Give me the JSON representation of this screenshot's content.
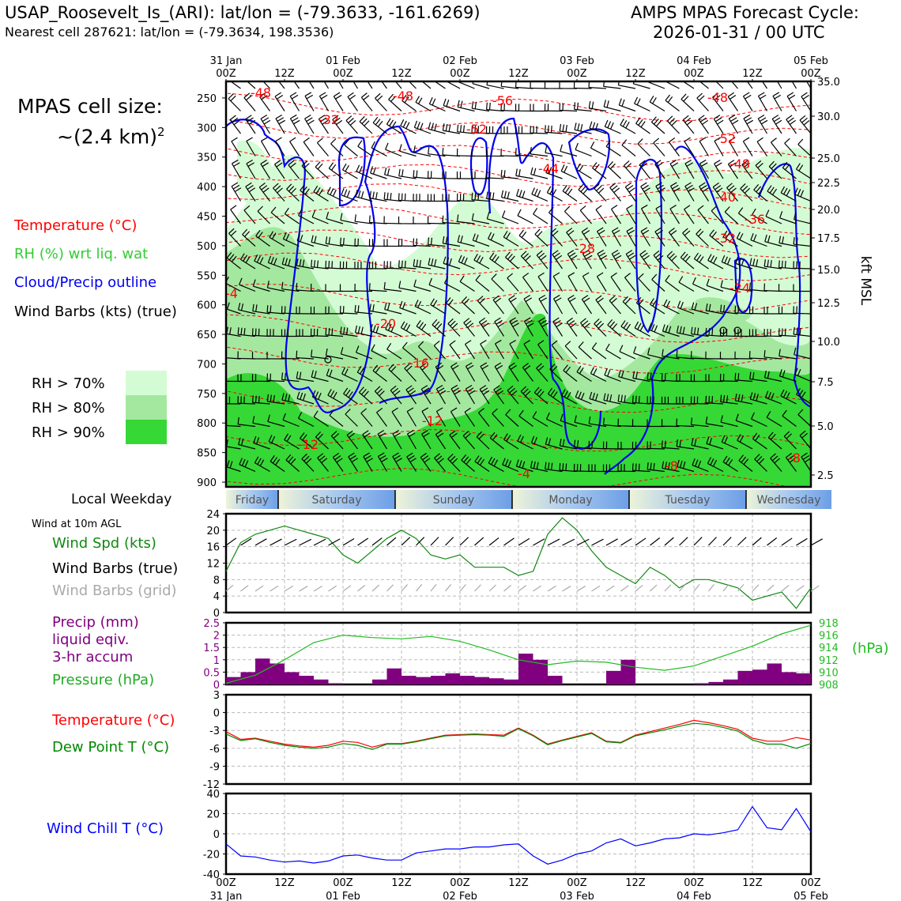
{
  "header": {
    "station": "USAP_Roosevelt_Is_(ARI): lat/lon = (-79.3633, -161.6269)",
    "nearest": "Nearest cell 287621: lat/lon = (-79.3634, 198.3536)",
    "cycle_label": "AMPS MPAS Forecast Cycle:",
    "cycle_value": "2026-01-31 / 00 UTC"
  },
  "cell_size": {
    "line1": "MPAS cell size:",
    "line2": "~(2.4 km)",
    "sup": "2"
  },
  "legend": {
    "temperature": "Temperature (°C)",
    "rh": "RH (%) wrt liq. wat",
    "cloud": "Cloud/Precip outline",
    "barbs": "Wind Barbs (kts) (true)",
    "rh70": "RH > 70%",
    "rh80": "RH > 80%",
    "rh90": "RH > 90%"
  },
  "colors": {
    "rh70": "#d4fcd4",
    "rh80": "#a4e8a0",
    "rh90": "#36d836",
    "temp": "#ff0000",
    "cloud": "#0000ee",
    "pressure": "#22bb22",
    "precip": "#800080",
    "windspd": "#118811",
    "dewpoint": "#008800",
    "windchill": "#0000ff",
    "grid_barb": "#aaaaaa"
  },
  "time_axis": {
    "top_dates": [
      "31 Jan",
      "",
      "01 Feb",
      "",
      "02 Feb",
      "",
      "03 Feb",
      "",
      "04 Feb",
      "",
      "05 Feb"
    ],
    "hours": [
      "00Z",
      "12Z",
      "00Z",
      "12Z",
      "00Z",
      "12Z",
      "00Z",
      "12Z",
      "00Z",
      "12Z",
      "00Z"
    ],
    "hour_range": [
      0,
      120
    ]
  },
  "weekday": {
    "label": "Local Weekday",
    "days": [
      "Friday",
      "Saturday",
      "Sunday",
      "Monday",
      "Tuesday",
      "Wednesday"
    ]
  },
  "wind10m": {
    "title": "Wind at 10m AGL",
    "spd_label": "Wind Spd (kts)",
    "barb_true": "Wind Barbs (true)",
    "barb_grid": "Wind Barbs (grid)"
  },
  "precip_panel": {
    "l1": "Precip (mm)",
    "l2": "liquid eqiv.",
    "l3": "3-hr accum",
    "l4": "Pressure (hPa)",
    "unit": "(hPa)"
  },
  "temp_panel": {
    "t": "Temperature (°C)",
    "td": "Dew Point T (°C)"
  },
  "chill_panel": {
    "label": "Wind Chill T (°C)"
  },
  "chart_data": [
    {
      "type": "heatmap",
      "ylabel_right": "kft MSL",
      "y_pressure_ticks": [
        250,
        300,
        350,
        400,
        450,
        500,
        550,
        600,
        650,
        700,
        750,
        800,
        850,
        900
      ],
      "y_kft_ticks": [
        "35.0",
        "30.0",
        "25.0",
        "22.5",
        "20.0",
        "17.5",
        "15.0",
        "12.5",
        "10.0",
        "7.5",
        "5.0",
        "2.5"
      ],
      "temperature_contour_labels": [
        -48,
        -32,
        -48,
        -56,
        -52,
        -44,
        -48,
        -52,
        -48,
        -40,
        -36,
        -32,
        -28,
        -24,
        -20,
        -16,
        -12,
        -12,
        -8,
        -8,
        -4,
        -4
      ]
    },
    {
      "type": "line",
      "name": "Wind Spd (kts)",
      "ylim": [
        0,
        24
      ],
      "yticks": [
        0,
        4,
        8,
        12,
        16,
        20,
        24
      ],
      "x_hours": [
        0,
        3,
        6,
        9,
        12,
        15,
        18,
        21,
        24,
        27,
        30,
        33,
        36,
        39,
        42,
        45,
        48,
        51,
        54,
        57,
        60,
        63,
        66,
        69,
        72,
        75,
        78,
        81,
        84,
        87,
        90,
        93,
        96,
        99,
        102,
        105,
        108,
        111,
        114,
        117,
        120
      ],
      "values": [
        10,
        17,
        19,
        20,
        21,
        20,
        19,
        18,
        14,
        12,
        15,
        18,
        20,
        18,
        14,
        13,
        14,
        11,
        11,
        11,
        9,
        10,
        19,
        23,
        20,
        15,
        11,
        9,
        7,
        11,
        9,
        6,
        8,
        8,
        7,
        6,
        3,
        4,
        5,
        1,
        6
      ]
    },
    {
      "type": "bar",
      "name": "Precip (mm)",
      "ylim": [
        0,
        2.5
      ],
      "yticks": [
        0,
        0.5,
        1.0,
        1.5,
        2.0,
        2.5
      ],
      "x_hours": [
        1.5,
        4.5,
        7.5,
        10.5,
        13.5,
        16.5,
        19.5,
        22.5,
        25.5,
        28.5,
        31.5,
        34.5,
        37.5,
        40.5,
        43.5,
        46.5,
        49.5,
        52.5,
        55.5,
        58.5,
        61.5,
        64.5,
        67.5,
        70.5,
        73.5,
        76.5,
        79.5,
        82.5,
        85.5,
        88.5,
        91.5,
        94.5,
        97.5,
        100.5,
        103.5,
        106.5,
        109.5,
        112.5,
        115.5,
        118.5
      ],
      "values": [
        0.3,
        0.5,
        1.05,
        0.85,
        0.5,
        0.35,
        0.2,
        0.05,
        0.0,
        0.0,
        0.2,
        0.65,
        0.35,
        0.3,
        0.35,
        0.45,
        0.35,
        0.3,
        0.25,
        0.2,
        1.25,
        1.0,
        0.35,
        0.0,
        0.0,
        0.0,
        0.55,
        1.0,
        0.0,
        0.0,
        0.0,
        0.0,
        0.05,
        0.1,
        0.2,
        0.55,
        0.6,
        0.85,
        0.5,
        0.45
      ]
    },
    {
      "type": "line",
      "name": "Pressure (hPa)",
      "ylim": [
        908,
        918
      ],
      "yticks": [
        908,
        910,
        912,
        914,
        916,
        918
      ],
      "x_hours": [
        0,
        6,
        12,
        18,
        24,
        30,
        36,
        42,
        48,
        54,
        60,
        66,
        72,
        78,
        84,
        90,
        96,
        102,
        108,
        114,
        120
      ],
      "values": [
        908.2,
        909.5,
        912,
        914.8,
        916,
        915.6,
        915.4,
        915.8,
        915,
        913.6,
        912,
        911.2,
        911.8,
        911.6,
        910.8,
        910.3,
        911,
        912.6,
        914.2,
        916.2,
        917.6
      ]
    },
    {
      "type": "line",
      "ylim": [
        -12,
        3
      ],
      "yticks": [
        -12,
        -9,
        -6,
        -3,
        0,
        3
      ],
      "x_hours": [
        0,
        3,
        6,
        9,
        12,
        15,
        18,
        21,
        24,
        27,
        30,
        33,
        36,
        39,
        42,
        45,
        48,
        51,
        54,
        57,
        60,
        63,
        66,
        69,
        72,
        75,
        78,
        81,
        84,
        87,
        90,
        93,
        96,
        99,
        102,
        105,
        108,
        111,
        114,
        117,
        120
      ],
      "series": [
        {
          "name": "Temperature (°C)",
          "values": [
            -3.2,
            -4.5,
            -4.3,
            -4.8,
            -5.3,
            -5.6,
            -5.8,
            -5.5,
            -4.8,
            -5.0,
            -5.8,
            -5.2,
            -5.2,
            -4.8,
            -4.3,
            -3.8,
            -3.7,
            -3.6,
            -3.7,
            -3.8,
            -2.6,
            -3.8,
            -5.3,
            -4.6,
            -4.0,
            -3.4,
            -4.8,
            -5.0,
            -3.8,
            -3.2,
            -2.6,
            -2.0,
            -1.3,
            -1.7,
            -2.2,
            -2.8,
            -4.3,
            -4.8,
            -4.8,
            -4.2,
            -4.6
          ]
        },
        {
          "name": "Dew Point T (°C)",
          "values": [
            -3.6,
            -4.7,
            -4.4,
            -5.0,
            -5.5,
            -5.8,
            -6.0,
            -5.8,
            -5.2,
            -5.5,
            -6.2,
            -5.3,
            -5.3,
            -4.9,
            -4.4,
            -3.9,
            -3.8,
            -3.7,
            -3.8,
            -4.0,
            -2.7,
            -3.9,
            -5.4,
            -4.7,
            -4.1,
            -3.5,
            -4.9,
            -5.1,
            -3.9,
            -3.4,
            -2.9,
            -2.3,
            -1.8,
            -2.0,
            -2.5,
            -3.1,
            -4.6,
            -5.3,
            -5.3,
            -6.0,
            -5.2
          ]
        }
      ]
    },
    {
      "type": "line",
      "name": "Wind Chill T (°C)",
      "ylim": [
        -40,
        40
      ],
      "yticks": [
        -40,
        -20,
        0,
        20,
        40
      ],
      "x_hours": [
        0,
        3,
        6,
        9,
        12,
        15,
        18,
        21,
        24,
        27,
        30,
        33,
        36,
        39,
        42,
        45,
        48,
        51,
        54,
        57,
        60,
        63,
        66,
        69,
        72,
        75,
        78,
        81,
        84,
        87,
        90,
        93,
        96,
        99,
        102,
        105,
        108,
        111,
        114,
        117,
        120
      ],
      "values": [
        -10,
        -22,
        -23,
        -26,
        -28,
        -27,
        -29,
        -27,
        -22,
        -21,
        -24,
        -26,
        -26,
        -19,
        -17,
        -15,
        -15,
        -13,
        -13,
        -11,
        -10,
        -22,
        -30,
        -26,
        -20,
        -17,
        -9,
        -5,
        -12,
        -9,
        -5,
        -4,
        0,
        -1,
        1,
        4,
        27,
        6,
        4,
        25,
        2
      ]
    }
  ]
}
